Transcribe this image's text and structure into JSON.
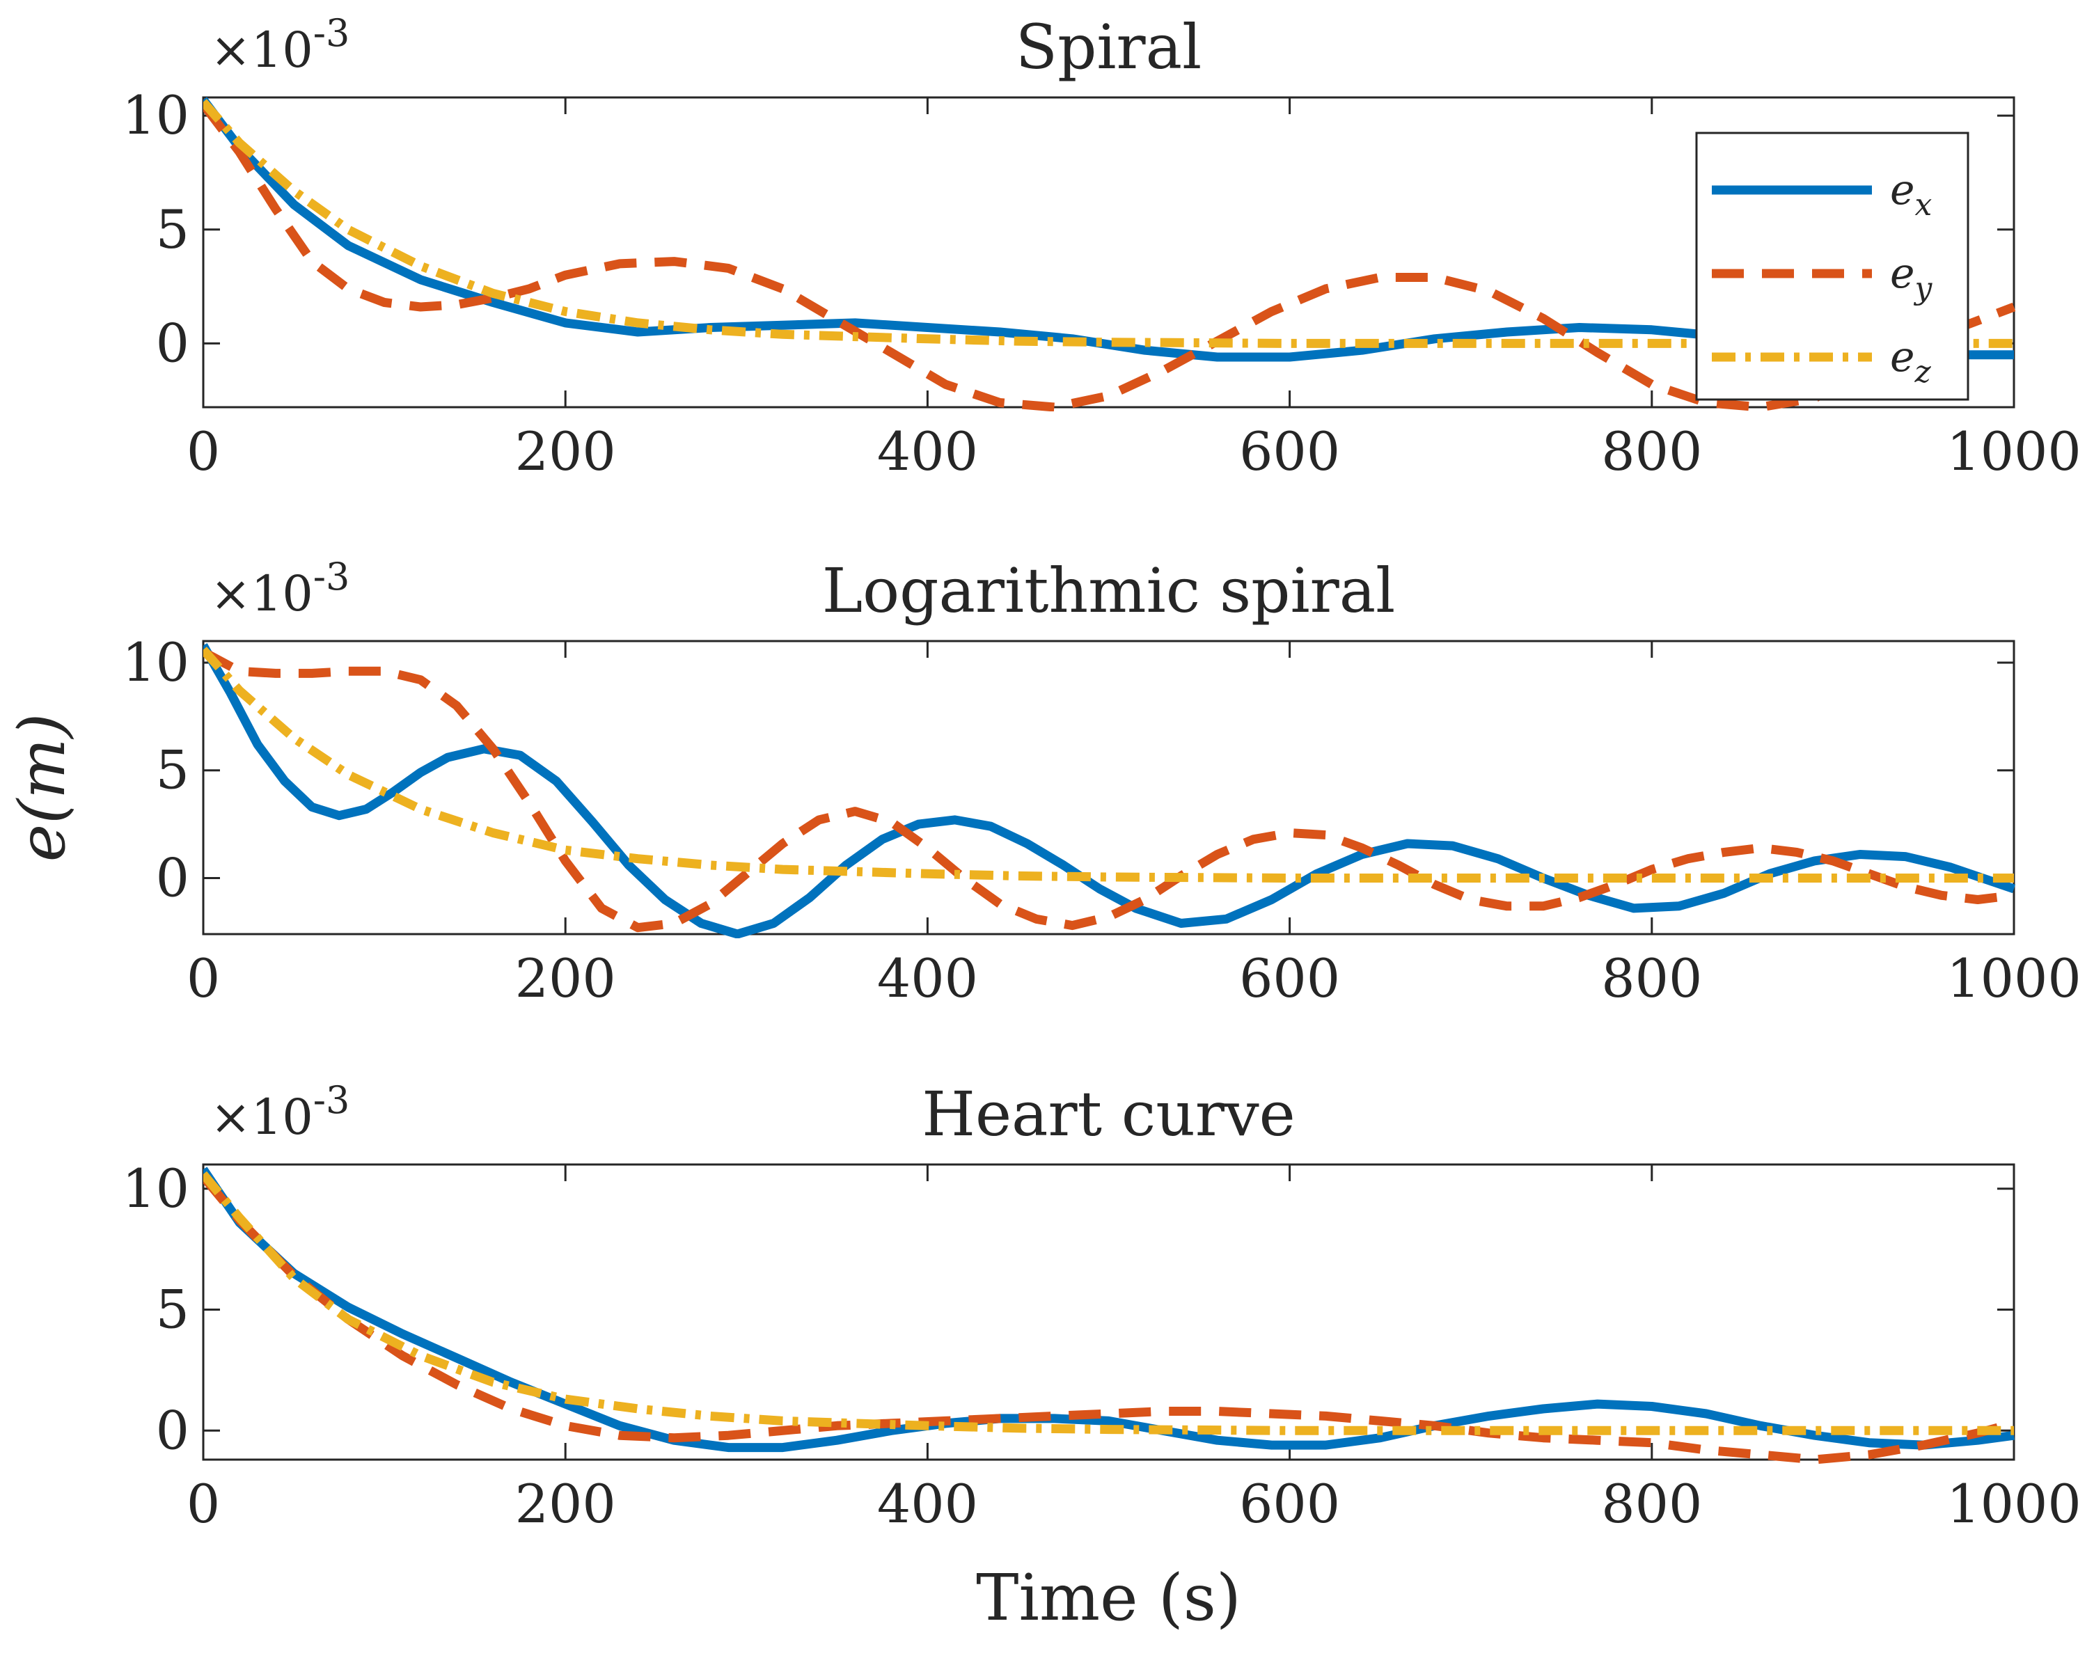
{
  "chart_data": [
    {
      "type": "line",
      "title": "Spiral",
      "exponent_label": "×10-3",
      "xlim": [
        0,
        1000
      ],
      "ylim": [
        -2.8,
        10.8
      ],
      "xticks": [
        "0",
        "200",
        "400",
        "600",
        "800",
        "1000"
      ],
      "yticks": [
        "0",
        "5",
        "10"
      ],
      "series": [
        {
          "name": "e_x",
          "x": [
            0,
            20,
            50,
            80,
            120,
            160,
            200,
            240,
            280,
            320,
            360,
            400,
            440,
            480,
            520,
            560,
            600,
            640,
            680,
            720,
            760,
            800,
            840,
            880,
            920,
            960,
            1000
          ],
          "values": [
            10.7,
            8.6,
            6.1,
            4.3,
            2.8,
            1.8,
            0.9,
            0.5,
            0.7,
            0.8,
            0.9,
            0.7,
            0.5,
            0.2,
            -0.3,
            -0.6,
            -0.6,
            -0.3,
            0.2,
            0.5,
            0.7,
            0.6,
            0.3,
            -0.1,
            -0.4,
            -0.5,
            -0.5
          ]
        },
        {
          "name": "e_y",
          "x": [
            0,
            20,
            40,
            60,
            80,
            100,
            120,
            140,
            160,
            180,
            200,
            230,
            260,
            290,
            320,
            350,
            380,
            410,
            440,
            470,
            500,
            530,
            560,
            590,
            620,
            650,
            680,
            710,
            740,
            770,
            800,
            830,
            860,
            890,
            920,
            950,
            980,
            1000
          ],
          "values": [
            10.5,
            8.4,
            5.9,
            3.6,
            2.4,
            1.8,
            1.6,
            1.7,
            2.0,
            2.4,
            3.0,
            3.5,
            3.6,
            3.3,
            2.4,
            1.0,
            -0.4,
            -1.8,
            -2.6,
            -2.8,
            -2.3,
            -1.2,
            0.1,
            1.4,
            2.4,
            2.9,
            2.9,
            2.3,
            1.1,
            -0.4,
            -1.8,
            -2.6,
            -2.8,
            -2.4,
            -1.2,
            0.1,
            1.0,
            1.6
          ]
        },
        {
          "name": "e_z",
          "x": [
            0,
            20,
            50,
            80,
            120,
            160,
            200,
            240,
            280,
            320,
            360,
            400,
            450,
            500,
            600,
            700,
            800,
            900,
            1000
          ],
          "values": [
            10.6,
            8.8,
            6.7,
            5.0,
            3.4,
            2.2,
            1.4,
            0.9,
            0.6,
            0.4,
            0.3,
            0.2,
            0.1,
            0.05,
            0.0,
            0.0,
            0.0,
            0.0,
            0.0
          ]
        }
      ],
      "legend": {
        "position": "top-right",
        "entries": [
          "e",
          "e",
          "e"
        ],
        "subscripts": [
          "x",
          "y",
          "z"
        ]
      }
    },
    {
      "type": "line",
      "title": "Logarithmic spiral",
      "exponent_label": "×10-3",
      "xlim": [
        0,
        1000
      ],
      "ylim": [
        -2.6,
        11.0
      ],
      "xticks": [
        "0",
        "200",
        "400",
        "600",
        "800",
        "1000"
      ],
      "yticks": [
        "0",
        "5",
        "10"
      ],
      "series": [
        {
          "name": "e_x",
          "x": [
            0,
            15,
            30,
            45,
            60,
            75,
            90,
            105,
            120,
            135,
            155,
            175,
            195,
            215,
            235,
            255,
            275,
            295,
            315,
            335,
            355,
            375,
            395,
            415,
            435,
            455,
            475,
            495,
            515,
            540,
            565,
            590,
            615,
            640,
            665,
            690,
            715,
            740,
            765,
            790,
            815,
            840,
            865,
            890,
            915,
            940,
            965,
            1000
          ],
          "values": [
            10.8,
            8.6,
            6.2,
            4.5,
            3.3,
            2.9,
            3.2,
            4.0,
            4.9,
            5.6,
            6.0,
            5.7,
            4.5,
            2.6,
            0.6,
            -1.0,
            -2.1,
            -2.6,
            -2.1,
            -0.9,
            0.6,
            1.8,
            2.5,
            2.7,
            2.4,
            1.6,
            0.6,
            -0.5,
            -1.4,
            -2.1,
            -1.9,
            -1.0,
            0.2,
            1.1,
            1.6,
            1.5,
            0.9,
            0.0,
            -0.8,
            -1.4,
            -1.3,
            -0.7,
            0.2,
            0.8,
            1.1,
            1.0,
            0.5,
            -0.5
          ]
        },
        {
          "name": "e_y",
          "x": [
            0,
            20,
            40,
            60,
            80,
            100,
            120,
            140,
            160,
            180,
            200,
            220,
            240,
            260,
            280,
            300,
            320,
            340,
            360,
            380,
            400,
            420,
            440,
            460,
            480,
            500,
            520,
            540,
            560,
            580,
            600,
            620,
            640,
            660,
            680,
            700,
            720,
            740,
            760,
            780,
            800,
            820,
            840,
            860,
            880,
            900,
            920,
            940,
            960,
            980,
            1000
          ],
          "values": [
            10.5,
            9.6,
            9.5,
            9.5,
            9.6,
            9.6,
            9.2,
            8.0,
            6.0,
            3.5,
            0.8,
            -1.4,
            -2.3,
            -2.1,
            -1.2,
            0.2,
            1.6,
            2.7,
            3.1,
            2.6,
            1.4,
            0.0,
            -1.2,
            -1.9,
            -2.2,
            -1.8,
            -1.0,
            0.1,
            1.1,
            1.8,
            2.1,
            2.0,
            1.4,
            0.6,
            -0.3,
            -1.0,
            -1.3,
            -1.3,
            -0.9,
            -0.3,
            0.4,
            0.9,
            1.2,
            1.4,
            1.2,
            0.8,
            0.2,
            -0.4,
            -0.8,
            -1.0,
            -0.8
          ]
        },
        {
          "name": "e_z",
          "x": [
            0,
            20,
            50,
            80,
            120,
            160,
            200,
            240,
            280,
            320,
            360,
            400,
            450,
            500,
            600,
            700,
            800,
            900,
            1000
          ],
          "values": [
            10.6,
            8.7,
            6.5,
            4.8,
            3.2,
            2.1,
            1.3,
            0.9,
            0.6,
            0.4,
            0.3,
            0.2,
            0.1,
            0.05,
            0.0,
            0.0,
            0.0,
            0.0,
            0.0
          ]
        }
      ],
      "ylabel": "e(m)"
    },
    {
      "type": "line",
      "title": "Heart curve",
      "exponent_label": "×10-3",
      "xlim": [
        0,
        1000
      ],
      "ylim": [
        -1.2,
        11.0
      ],
      "xticks": [
        "0",
        "200",
        "400",
        "600",
        "800",
        "1000"
      ],
      "yticks": [
        "0",
        "5",
        "10"
      ],
      "series": [
        {
          "name": "e_x",
          "x": [
            0,
            20,
            50,
            80,
            110,
            140,
            170,
            200,
            230,
            260,
            290,
            320,
            350,
            380,
            410,
            440,
            470,
            500,
            530,
            560,
            590,
            620,
            650,
            680,
            710,
            740,
            770,
            800,
            830,
            860,
            890,
            920,
            950,
            980,
            1000
          ],
          "values": [
            10.8,
            8.6,
            6.5,
            5.1,
            4.0,
            3.0,
            2.0,
            1.1,
            0.2,
            -0.4,
            -0.7,
            -0.7,
            -0.4,
            0.0,
            0.3,
            0.5,
            0.5,
            0.4,
            0.0,
            -0.4,
            -0.6,
            -0.6,
            -0.3,
            0.2,
            0.6,
            0.9,
            1.1,
            1.0,
            0.7,
            0.2,
            -0.2,
            -0.5,
            -0.6,
            -0.4,
            -0.2
          ]
        },
        {
          "name": "e_y",
          "x": [
            0,
            20,
            50,
            80,
            110,
            140,
            170,
            200,
            230,
            260,
            290,
            320,
            350,
            380,
            410,
            440,
            470,
            500,
            530,
            560,
            590,
            620,
            650,
            680,
            710,
            740,
            770,
            800,
            830,
            860,
            890,
            920,
            950,
            980,
            1000
          ],
          "values": [
            10.5,
            8.7,
            6.4,
            4.6,
            3.1,
            1.9,
            0.9,
            0.2,
            -0.2,
            -0.3,
            -0.2,
            0.0,
            0.2,
            0.3,
            0.4,
            0.5,
            0.6,
            0.7,
            0.8,
            0.8,
            0.7,
            0.6,
            0.4,
            0.2,
            -0.1,
            -0.3,
            -0.4,
            -0.5,
            -0.8,
            -1.0,
            -1.2,
            -1.0,
            -0.6,
            -0.1,
            0.3
          ]
        },
        {
          "name": "e_z",
          "x": [
            0,
            20,
            50,
            80,
            120,
            160,
            200,
            240,
            280,
            320,
            360,
            400,
            450,
            500,
            600,
            700,
            800,
            900,
            1000
          ],
          "values": [
            10.6,
            8.8,
            6.3,
            4.6,
            3.1,
            2.0,
            1.3,
            0.9,
            0.6,
            0.4,
            0.3,
            0.2,
            0.1,
            0.05,
            0.0,
            0.0,
            0.0,
            0.0,
            0.0
          ]
        }
      ],
      "xlabel": "Time (s)"
    }
  ],
  "colors": {
    "e_x": "#0072BD",
    "e_y": "#D95319",
    "e_z": "#EDB120",
    "axis": "#262626"
  }
}
